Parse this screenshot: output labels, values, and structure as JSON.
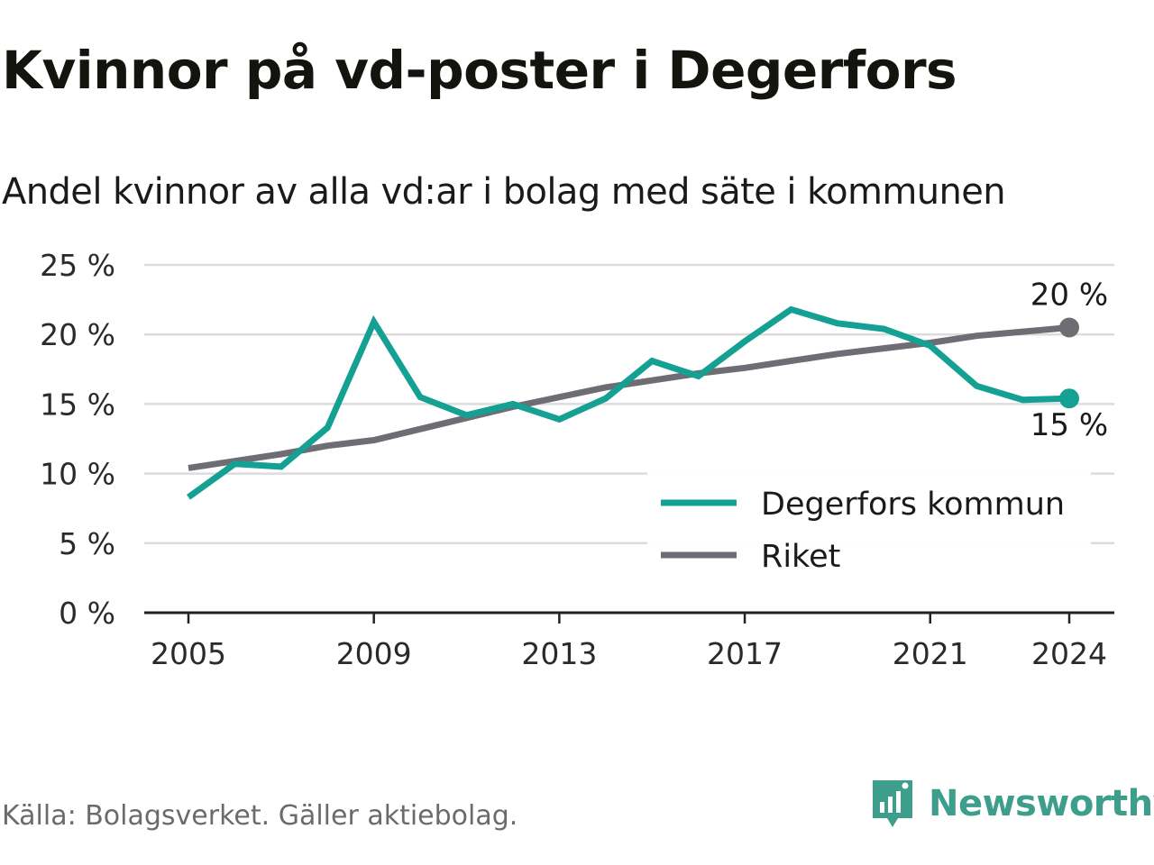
{
  "title": "Kvinnor på vd-poster i Degerfors",
  "subtitle": "Andel kvinnor av alla vd:ar i bolag med säte i kommunen",
  "source": "Källa: Bolagsverket. Gäller aktiebolag.",
  "brand": "Newsworthy",
  "colors": {
    "degerfors": "#14a092",
    "riket": "#6e6d73",
    "grid": "#dcdcdc",
    "axis": "#222222",
    "brand": "#3d9e8c"
  },
  "chart_data": {
    "type": "line",
    "x": [
      2005,
      2006,
      2007,
      2008,
      2009,
      2010,
      2011,
      2012,
      2013,
      2014,
      2015,
      2016,
      2017,
      2018,
      2019,
      2020,
      2021,
      2022,
      2023,
      2024
    ],
    "series": [
      {
        "name": "Degerfors kommun",
        "color": "#14a092",
        "values": [
          8.3,
          10.7,
          10.5,
          13.3,
          20.9,
          15.5,
          14.2,
          15.0,
          13.9,
          15.4,
          18.1,
          17.0,
          19.5,
          21.8,
          20.8,
          20.4,
          19.2,
          16.3,
          15.3,
          15.4
        ]
      },
      {
        "name": "Riket",
        "color": "#6e6d73",
        "values": [
          10.4,
          10.9,
          11.4,
          12.0,
          12.4,
          13.2,
          14.0,
          14.8,
          15.5,
          16.2,
          16.7,
          17.2,
          17.6,
          18.1,
          18.6,
          19.0,
          19.4,
          19.9,
          20.2,
          20.5
        ]
      }
    ],
    "end_labels": [
      "15 %",
      "20 %"
    ],
    "y_ticks": [
      "0 %",
      "5 %",
      "10 %",
      "15 %",
      "20 %",
      "25 %"
    ],
    "x_ticks": [
      "2005",
      "2009",
      "2013",
      "2017",
      "2021",
      "2024"
    ],
    "ylim": [
      0,
      25
    ],
    "xlim": [
      2005,
      2024
    ],
    "legend_position": "bottom-right",
    "grid": true
  }
}
